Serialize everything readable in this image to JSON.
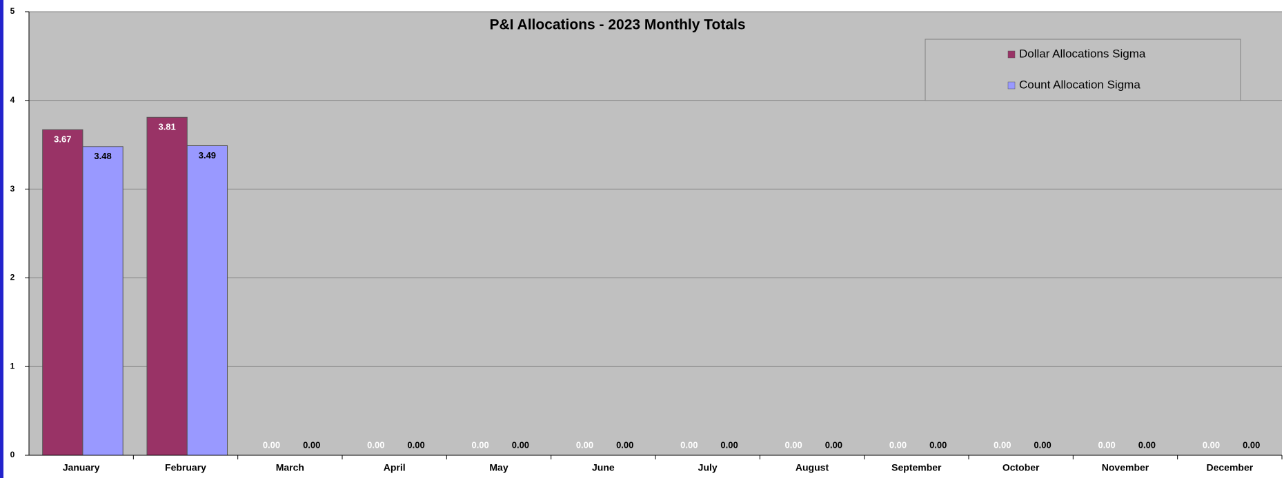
{
  "chart_data": {
    "type": "bar",
    "title": "P&I Allocations -  2023 Monthly Totals",
    "categories": [
      "January",
      "February",
      "March",
      "April",
      "May",
      "June",
      "July",
      "August",
      "September",
      "October",
      "November",
      "December"
    ],
    "series": [
      {
        "name": "Dollar Allocations Sigma",
        "color": "#993366",
        "values": [
          3.67,
          3.81,
          0,
          0,
          0,
          0,
          0,
          0,
          0,
          0,
          0,
          0
        ],
        "value_labels": [
          "3.67",
          "3.81",
          "0.00",
          "0.00",
          "0.00",
          "0.00",
          "0.00",
          "0.00",
          "0.00",
          "0.00",
          "0.00",
          "0.00"
        ]
      },
      {
        "name": "Count Allocation Sigma",
        "color": "#9999ff",
        "values": [
          3.48,
          3.49,
          0,
          0,
          0,
          0,
          0,
          0,
          0,
          0,
          0,
          0
        ],
        "value_labels": [
          "3.48",
          "3.49",
          "0.00",
          "0.00",
          "0.00",
          "0.00",
          "0.00",
          "0.00",
          "0.00",
          "0.00",
          "0.00",
          "0.00"
        ]
      }
    ],
    "ylim": [
      0,
      5
    ],
    "yticks": [
      0,
      1,
      2,
      3,
      4,
      5
    ],
    "grid": true,
    "legend": "top-right"
  }
}
